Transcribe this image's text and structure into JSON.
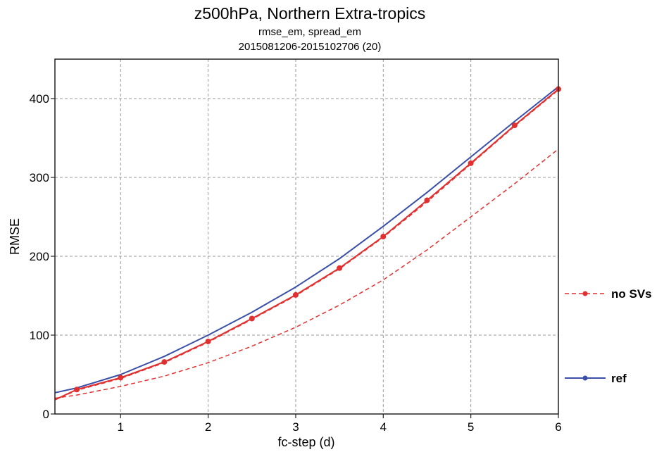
{
  "chart_data": {
    "type": "line",
    "title": "z500hPa,  Northern Extra-tropics",
    "subtitle_1": "rmse_em, spread_em",
    "subtitle_2": "2015081206-2015102706 (20)",
    "xlabel": "fc-step (d)",
    "ylabel": "RMSE",
    "xlim": [
      0.25,
      6
    ],
    "ylim": [
      0,
      450
    ],
    "xticks": [
      1,
      2,
      3,
      4,
      5,
      6
    ],
    "yticks": [
      0,
      100,
      200,
      300,
      400
    ],
    "grid": true,
    "legend_position": "right",
    "legend": [
      {
        "label": "no SVs",
        "color": "#e03030",
        "style": "dashed"
      },
      {
        "label": "ref",
        "color": "#3a4fa8",
        "style": "solid"
      }
    ],
    "series": [
      {
        "legend_index": 1,
        "color": "#3a4fa8",
        "style": "solid",
        "x": [
          0.25,
          0.5,
          1,
          1.5,
          2,
          2.5,
          3,
          3.5,
          4,
          4.5,
          5,
          5.5,
          6
        ],
        "y": [
          27,
          33,
          50,
          73,
          100,
          129,
          161,
          197,
          238,
          281,
          326,
          371,
          415
        ]
      },
      {
        "legend_index": 0,
        "color": "#e03030",
        "style": "solid",
        "markers": true,
        "x": [
          0.25,
          0.5,
          1,
          1.5,
          2,
          2.5,
          3,
          3.5,
          4,
          4.5,
          5,
          5.5,
          6
        ],
        "y": [
          18,
          31,
          46,
          66,
          92,
          121,
          151,
          185,
          225,
          271,
          318,
          366,
          412
        ]
      },
      {
        "legend_index": 0,
        "color": "#e03030",
        "style": "dashed",
        "x": [
          0.25,
          0.5,
          1,
          1.5,
          2,
          2.5,
          3,
          3.5,
          4,
          4.5,
          5,
          5.5,
          6
        ],
        "y": [
          18,
          30,
          45,
          65,
          91,
          120,
          150,
          184,
          224,
          269,
          317,
          365,
          411
        ]
      },
      {
        "legend_index": 0,
        "color": "#e03030",
        "style": "dashed",
        "x": [
          0.25,
          0.5,
          1,
          1.5,
          2,
          2.5,
          3,
          3.5,
          4,
          4.5,
          5,
          5.5,
          6
        ],
        "y": [
          20,
          24,
          35,
          48,
          65,
          86,
          110,
          138,
          170,
          208,
          250,
          292,
          336
        ]
      }
    ]
  }
}
